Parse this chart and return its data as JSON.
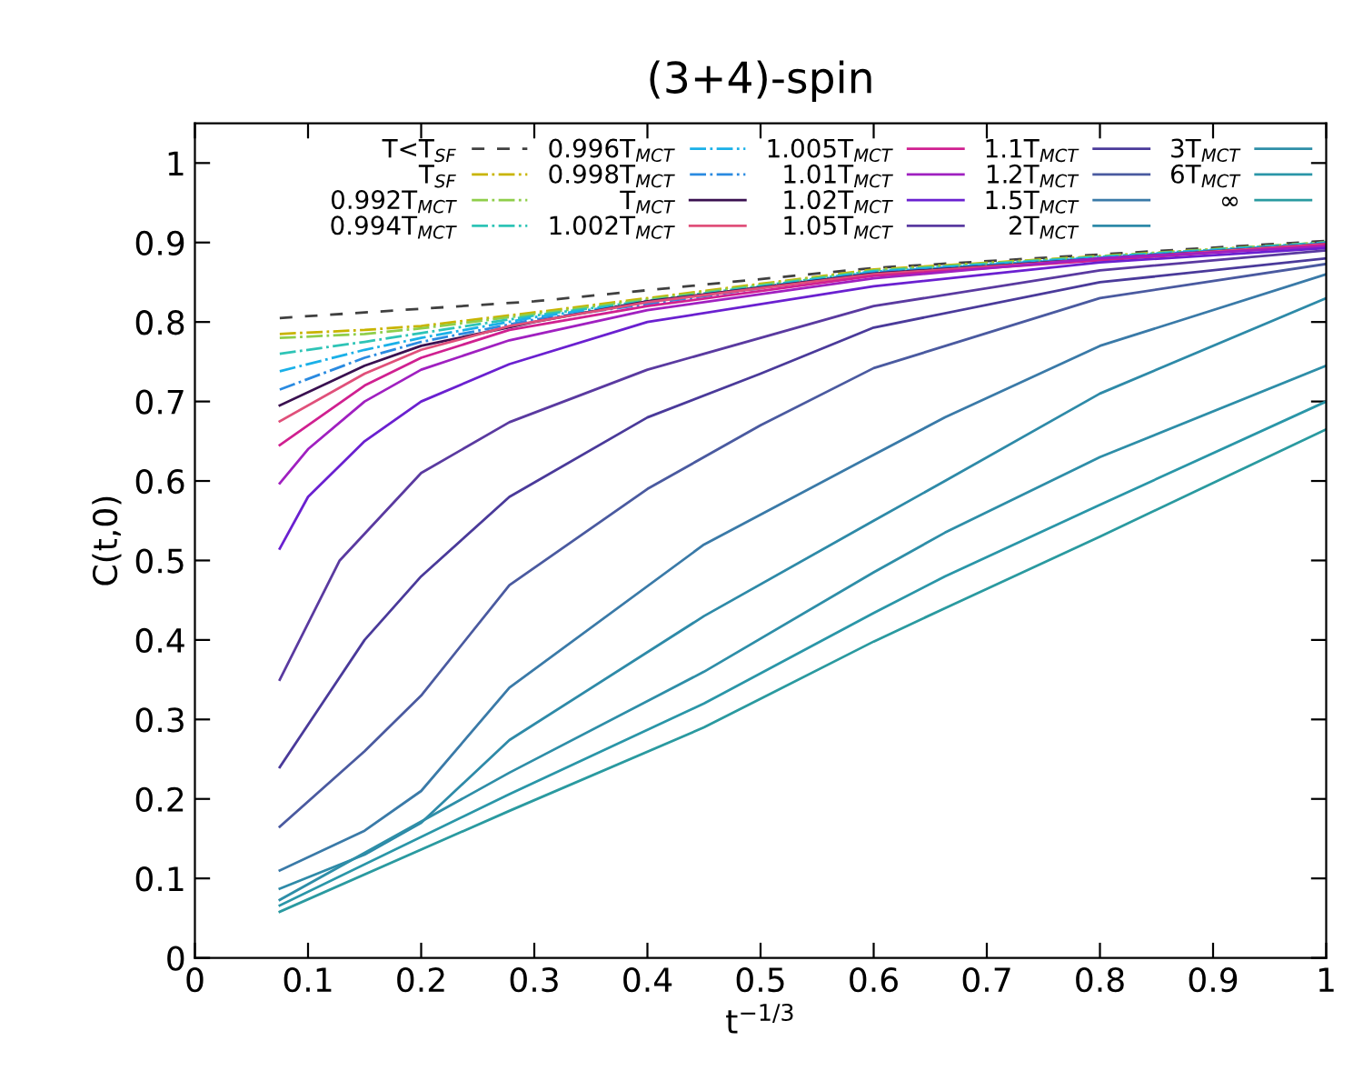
{
  "chart_data": {
    "type": "line",
    "title": "(3+4)-spin",
    "xlabel": "t$^{−1/3}$",
    "ylabel": "C(t,0)",
    "xlim": [
      0,
      1
    ],
    "ylim": [
      0,
      1.05
    ],
    "xticks": [
      0,
      0.1,
      0.2,
      0.3,
      0.4,
      0.5,
      0.6,
      0.7,
      0.8,
      0.9,
      1
    ],
    "yticks": [
      0,
      0.1,
      0.2,
      0.3,
      0.4,
      0.5,
      0.6,
      0.7,
      0.8,
      0.9,
      1
    ],
    "grid": false,
    "legend": "top right",
    "marker": "none",
    "series": [
      {
        "name": "T<T$_{SF}$",
        "color": "#404040",
        "line_style": "dashed",
        "x": [
          0.075,
          0.3,
          0.6,
          1
        ],
        "values": [
          0.805,
          0.826,
          0.868,
          0.902
        ]
      },
      {
        "name": "T$_{SF}$",
        "color": "#c8b400",
        "line_style": "dashdot",
        "x": [
          0.075,
          0.15,
          0.2,
          0.3,
          0.6,
          1
        ],
        "values": [
          0.785,
          0.79,
          0.795,
          0.812,
          0.866,
          0.9
        ]
      },
      {
        "name": "0.992T$_{MCT}$",
        "color": "#8fce4a",
        "line_style": "dashdot",
        "x": [
          0.075,
          0.15,
          0.2,
          0.3,
          0.6,
          1
        ],
        "values": [
          0.78,
          0.785,
          0.792,
          0.81,
          0.865,
          0.9
        ]
      },
      {
        "name": "0.994T$_{MCT}$",
        "color": "#2ec4b6",
        "line_style": "dashdot",
        "x": [
          0.075,
          0.15,
          0.2,
          0.3,
          0.6,
          1
        ],
        "values": [
          0.76,
          0.775,
          0.786,
          0.808,
          0.864,
          0.9
        ]
      },
      {
        "name": "0.996T$_{MCT}$",
        "color": "#1ab0e8",
        "line_style": "dashdot",
        "x": [
          0.075,
          0.15,
          0.2,
          0.3,
          0.6,
          1
        ],
        "values": [
          0.738,
          0.765,
          0.78,
          0.806,
          0.863,
          0.899
        ]
      },
      {
        "name": "0.998T$_{MCT}$",
        "color": "#2a8ae0",
        "line_style": "dashdot",
        "x": [
          0.075,
          0.15,
          0.2,
          0.3,
          0.6,
          1
        ],
        "values": [
          0.715,
          0.755,
          0.775,
          0.803,
          0.862,
          0.899
        ]
      },
      {
        "name": "T$_{MCT}$",
        "color": "#3a1050",
        "line_style": "solid",
        "x": [
          0.075,
          0.15,
          0.2,
          0.3,
          0.4,
          0.6,
          1
        ],
        "values": [
          0.695,
          0.745,
          0.77,
          0.8,
          0.826,
          0.861,
          0.898
        ]
      },
      {
        "name": "1.002T$_{MCT}$",
        "color": "#e0507a",
        "line_style": "solid",
        "x": [
          0.075,
          0.15,
          0.2,
          0.278,
          0.4,
          0.6,
          1
        ],
        "values": [
          0.675,
          0.735,
          0.765,
          0.795,
          0.825,
          0.86,
          0.898
        ]
      },
      {
        "name": "1.005T$_{MCT}$",
        "color": "#d02090",
        "line_style": "solid",
        "x": [
          0.075,
          0.15,
          0.2,
          0.278,
          0.4,
          0.6,
          1
        ],
        "values": [
          0.645,
          0.72,
          0.755,
          0.79,
          0.82,
          0.858,
          0.897
        ]
      },
      {
        "name": "1.01T$_{MCT}$",
        "color": "#a020c0",
        "line_style": "solid",
        "x": [
          0.075,
          0.1,
          0.15,
          0.2,
          0.278,
          0.4,
          0.6,
          0.8,
          1
        ],
        "values": [
          0.597,
          0.64,
          0.7,
          0.74,
          0.777,
          0.815,
          0.855,
          0.88,
          0.895
        ]
      },
      {
        "name": "1.02T$_{MCT}$",
        "color": "#6a20d0",
        "line_style": "solid",
        "x": [
          0.075,
          0.1,
          0.15,
          0.2,
          0.278,
          0.4,
          0.6,
          0.8,
          1
        ],
        "values": [
          0.515,
          0.58,
          0.65,
          0.7,
          0.747,
          0.8,
          0.845,
          0.875,
          0.893
        ]
      },
      {
        "name": "1.05T$_{MCT}$",
        "color": "#5a3aa0",
        "line_style": "solid",
        "x": [
          0.075,
          0.128,
          0.2,
          0.278,
          0.4,
          0.6,
          0.8,
          1
        ],
        "values": [
          0.35,
          0.5,
          0.61,
          0.674,
          0.74,
          0.82,
          0.865,
          0.89
        ]
      },
      {
        "name": "1.1T$_{MCT}$",
        "color": "#4a3a9a",
        "line_style": "solid",
        "x": [
          0.075,
          0.15,
          0.2,
          0.278,
          0.4,
          0.5,
          0.6,
          0.8,
          1
        ],
        "values": [
          0.24,
          0.4,
          0.48,
          0.58,
          0.68,
          0.735,
          0.793,
          0.85,
          0.88
        ]
      },
      {
        "name": "1.2T$_{MCT}$",
        "color": "#4a5aa0",
        "line_style": "solid",
        "x": [
          0.075,
          0.15,
          0.2,
          0.278,
          0.4,
          0.5,
          0.6,
          0.8,
          1
        ],
        "values": [
          0.165,
          0.26,
          0.33,
          0.469,
          0.59,
          0.67,
          0.742,
          0.83,
          0.873
        ]
      },
      {
        "name": "1.5T$_{MCT}$",
        "color": "#3a7aa8",
        "line_style": "solid",
        "x": [
          0.075,
          0.15,
          0.2,
          0.278,
          0.45,
          0.6,
          0.663,
          0.8,
          1
        ],
        "values": [
          0.11,
          0.16,
          0.21,
          0.34,
          0.52,
          0.633,
          0.68,
          0.77,
          0.86
        ]
      },
      {
        "name": "2T$_{MCT}$",
        "color": "#2e8aa8",
        "line_style": "solid",
        "x": [
          0.075,
          0.15,
          0.2,
          0.278,
          0.45,
          0.6,
          0.663,
          0.8,
          1
        ],
        "values": [
          0.087,
          0.13,
          0.17,
          0.274,
          0.43,
          0.55,
          0.6,
          0.71,
          0.83
        ]
      },
      {
        "name": "3T$_{MCT}$",
        "color": "#2e8ea8",
        "line_style": "solid",
        "x": [
          0.075,
          0.278,
          0.45,
          0.6,
          0.663,
          0.8,
          1
        ],
        "values": [
          0.073,
          0.233,
          0.36,
          0.485,
          0.535,
          0.63,
          0.745
        ]
      },
      {
        "name": "6T$_{MCT}$",
        "color": "#2a96a8",
        "line_style": "solid",
        "x": [
          0.075,
          0.278,
          0.45,
          0.6,
          0.663,
          0.8,
          1
        ],
        "values": [
          0.066,
          0.206,
          0.32,
          0.434,
          0.48,
          0.57,
          0.7
        ]
      },
      {
        "name": "∞",
        "color": "#2a9aa0",
        "line_style": "solid",
        "x": [
          0.075,
          0.278,
          0.45,
          0.6,
          0.663,
          0.8,
          1
        ],
        "values": [
          0.058,
          0.185,
          0.29,
          0.398,
          0.44,
          0.53,
          0.665
        ]
      }
    ]
  }
}
